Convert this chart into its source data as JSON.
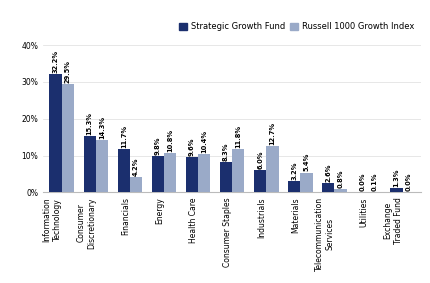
{
  "categories": [
    "Information\nTechnology",
    "Consumer\nDiscretionary",
    "Financials",
    "Energy",
    "Health Care",
    "Consumer Staples",
    "Industrials",
    "Materials",
    "Telecommunication\nServices",
    "Utilities",
    "Exchange\nTraded Fund"
  ],
  "fund_values": [
    32.2,
    15.3,
    11.7,
    9.8,
    9.6,
    8.3,
    6.0,
    3.2,
    2.6,
    0.0,
    1.3
  ],
  "benchmark_values": [
    29.5,
    14.3,
    4.2,
    10.8,
    10.4,
    11.8,
    12.7,
    5.4,
    0.8,
    0.1,
    0.0
  ],
  "fund_color": "#1b2f6e",
  "benchmark_color": "#9aaac8",
  "fund_label": "Strategic Growth Fund",
  "benchmark_label": "Russell 1000 Growth Index",
  "ylim": [
    0,
    43
  ],
  "yticks": [
    0,
    10,
    20,
    30,
    40
  ],
  "ytick_labels": [
    "0%",
    "10%",
    "20%",
    "30%",
    "40%"
  ],
  "bar_width": 0.36,
  "label_fontsize": 6.0,
  "tick_fontsize": 5.5,
  "value_fontsize": 4.8
}
